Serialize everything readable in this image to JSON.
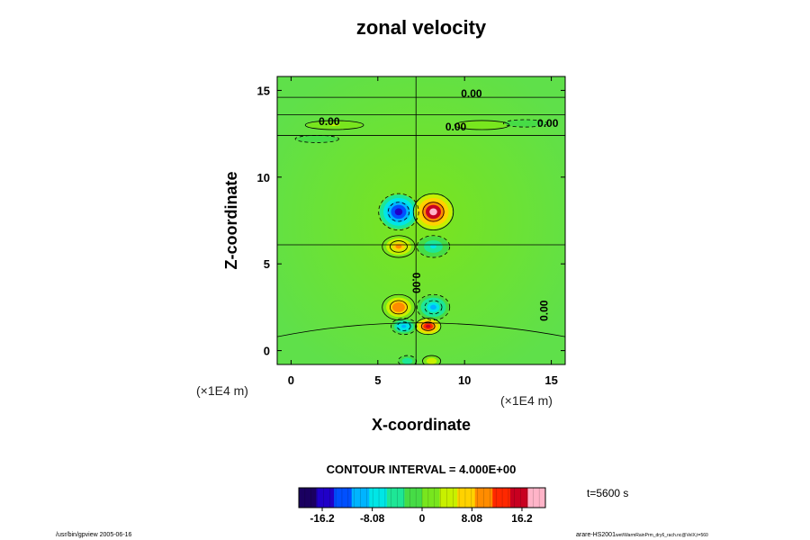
{
  "chart_data": {
    "type": "heatmap",
    "title": "zonal velocity",
    "xlabel": "X-coordinate",
    "ylabel": "Z-coordinate",
    "x_unit": "(×1E4 m)",
    "y_unit": "(×1E4 m)",
    "xlim": [
      -0.8,
      15.8
    ],
    "ylim": [
      -0.8,
      15.8
    ],
    "x_ticks": [
      0,
      5,
      10,
      15
    ],
    "y_ticks": [
      0,
      5,
      10,
      15
    ],
    "contour_interval_text": "CONTOUR INTERVAL = 4.000E+00",
    "time_text": "t=5600 s",
    "colorbar": {
      "range": [
        -20,
        20
      ],
      "ticks": [
        -16.2,
        -8.08,
        0,
        8.08,
        16.2
      ],
      "tick_labels": [
        "-16.2",
        "-8.08",
        "0",
        "8.08",
        "16.2"
      ],
      "colors": [
        "#1a0060",
        "#2000c8",
        "#0050ff",
        "#00b4ff",
        "#00e6e6",
        "#1ee696",
        "#46dc46",
        "#78e61e",
        "#c8f000",
        "#ffd200",
        "#ff8c00",
        "#ff2800",
        "#c80020",
        "#ffb4c8"
      ]
    },
    "contour_labels": [
      {
        "text": "0.00",
        "x": 10.4,
        "z": 14.6
      },
      {
        "text": "0.00",
        "x": 2.2,
        "z": 13.0
      },
      {
        "text": "0.00",
        "x": 9.5,
        "z": 12.7
      },
      {
        "text": "0.00",
        "x": 14.8,
        "z": 12.9
      },
      {
        "text": "0.00",
        "x": 7.0,
        "z": 3.9,
        "rotate": 90
      },
      {
        "text": "0.00",
        "x": 14.8,
        "z": 2.3,
        "rotate": -90
      }
    ],
    "extrema": [
      {
        "x": 6.2,
        "z": 8.0,
        "value": -16,
        "rx": 1.1,
        "rz": 1.0
      },
      {
        "x": 8.2,
        "z": 8.0,
        "value": 18,
        "rx": 1.1,
        "rz": 1.0
      },
      {
        "x": 6.2,
        "z": 6.0,
        "value": 9,
        "rx": 0.9,
        "rz": 0.6
      },
      {
        "x": 8.2,
        "z": 6.0,
        "value": -6,
        "rx": 0.9,
        "rz": 0.6
      },
      {
        "x": 6.2,
        "z": 2.5,
        "value": 11,
        "rx": 0.9,
        "rz": 0.7
      },
      {
        "x": 8.2,
        "z": 2.5,
        "value": -9,
        "rx": 0.9,
        "rz": 0.7
      },
      {
        "x": 6.5,
        "z": 1.4,
        "value": -10,
        "rx": 0.7,
        "rz": 0.45
      },
      {
        "x": 7.9,
        "z": 1.4,
        "value": 16,
        "rx": 0.7,
        "rz": 0.45
      },
      {
        "x": 6.7,
        "z": -0.6,
        "value": -5,
        "rx": 0.5,
        "rz": 0.3
      },
      {
        "x": 8.1,
        "z": -0.6,
        "value": 5,
        "rx": 0.5,
        "rz": 0.3
      },
      {
        "x": 2.5,
        "z": 13.0,
        "value": 3,
        "rx": 1.6,
        "rz": 0.25
      },
      {
        "x": 1.5,
        "z": 12.2,
        "value": -2,
        "rx": 1.2,
        "rz": 0.2
      },
      {
        "x": 11.0,
        "z": 13.0,
        "value": 2,
        "rx": 1.5,
        "rz": 0.25
      },
      {
        "x": 13.5,
        "z": 13.1,
        "value": -2,
        "rx": 1.2,
        "rz": 0.2
      }
    ]
  },
  "footer": {
    "left_text": "/usr/bin/gpview 2005-06-16",
    "right_text_main": "arare-HS2001",
    "right_text_small": "wet/WarmRainPrm_dry6_rach.nc@VelX,t=560"
  }
}
